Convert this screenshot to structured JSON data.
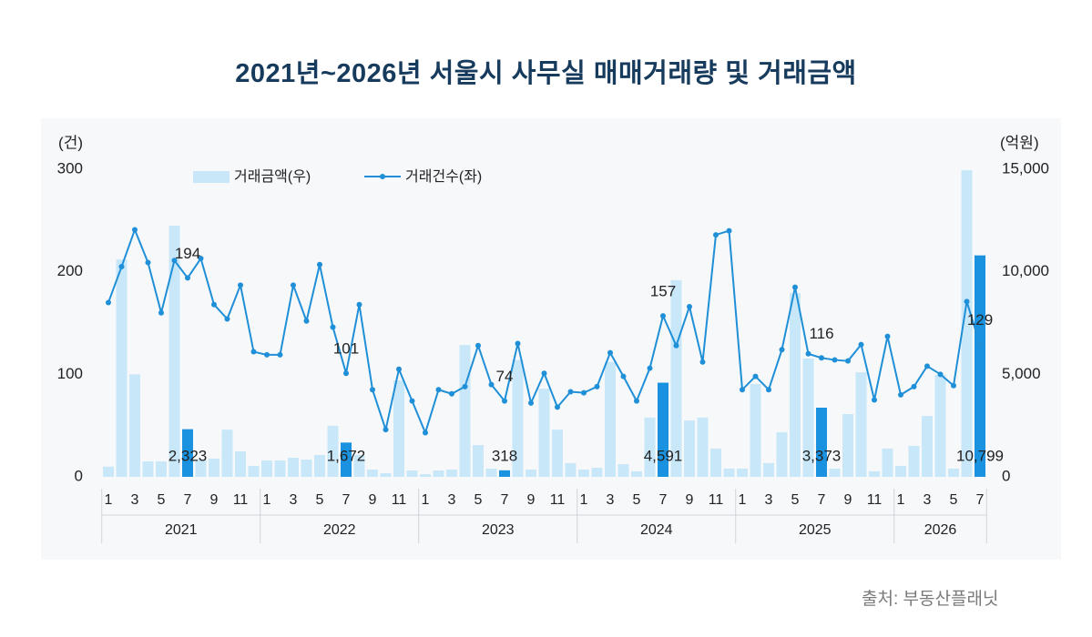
{
  "chart_data": {
    "type": "bar",
    "title": "2021년~2026년 서울시 사무실 매매거래량 및 거래금액",
    "y_left": {
      "label": "(건)",
      "ticks": [
        "0",
        "100",
        "200",
        "300"
      ],
      "range": [
        0,
        300
      ]
    },
    "y_right": {
      "label": "(억원)",
      "ticks": [
        "0",
        "5,000",
        "10,000",
        "15,000"
      ],
      "range": [
        0,
        15000
      ]
    },
    "years": [
      {
        "label": "2021",
        "tick_labels": [
          "1",
          "3",
          "5",
          "7",
          "9",
          "11"
        ]
      },
      {
        "label": "2022",
        "tick_labels": [
          "1",
          "3",
          "5",
          "7",
          "9",
          "11"
        ]
      },
      {
        "label": "2023",
        "tick_labels": [
          "1",
          "3",
          "5",
          "7",
          "9",
          "11"
        ]
      },
      {
        "label": "2024",
        "tick_labels": [
          "1",
          "3",
          "5",
          "7",
          "9",
          "11"
        ]
      },
      {
        "label": "2025",
        "tick_labels": [
          "1",
          "3",
          "5",
          "7",
          "9",
          "11"
        ]
      },
      {
        "label": "2026",
        "tick_labels": [
          "1",
          "3",
          "5",
          "7"
        ]
      }
    ],
    "x": [
      "2021-01",
      "2021-02",
      "2021-03",
      "2021-04",
      "2021-05",
      "2021-06",
      "2021-07",
      "2021-08",
      "2021-09",
      "2021-10",
      "2021-11",
      "2021-12",
      "2022-01",
      "2022-02",
      "2022-03",
      "2022-04",
      "2022-05",
      "2022-06",
      "2022-07",
      "2022-08",
      "2022-09",
      "2022-10",
      "2022-11",
      "2022-12",
      "2023-01",
      "2023-02",
      "2023-03",
      "2023-04",
      "2023-05",
      "2023-06",
      "2023-07",
      "2023-08",
      "2023-09",
      "2023-10",
      "2023-11",
      "2023-12",
      "2024-01",
      "2024-02",
      "2024-03",
      "2024-04",
      "2024-05",
      "2024-06",
      "2024-07",
      "2024-08",
      "2024-09",
      "2024-10",
      "2024-11",
      "2024-12",
      "2025-01",
      "2025-02",
      "2025-03",
      "2025-04",
      "2025-05",
      "2025-06",
      "2025-07",
      "2025-08",
      "2025-09",
      "2025-10",
      "2025-11",
      "2025-12",
      "2026-01",
      "2026-02",
      "2026-03",
      "2026-04",
      "2026-05",
      "2026-06",
      "2026-07"
    ],
    "series": [
      {
        "name": "거래금액(우)",
        "type": "bar",
        "axis": "right",
        "values": [
          500,
          10600,
          5000,
          750,
          750,
          12250,
          2323,
          850,
          890,
          2300,
          1240,
          530,
          800,
          800,
          930,
          840,
          1070,
          2490,
          1672,
          1070,
          350,
          180,
          4700,
          310,
          130,
          310,
          350,
          6430,
          1550,
          400,
          318,
          5700,
          350,
          4300,
          2300,
          670,
          350,
          440,
          5600,
          620,
          270,
          2890,
          4591,
          9590,
          2750,
          2890,
          1380,
          400,
          400,
          4530,
          670,
          2170,
          8960,
          5770,
          3373,
          400,
          3060,
          5100,
          270,
          1380,
          530,
          1510,
          2970,
          4970,
          400,
          14950,
          10799
        ],
        "data_labels": [
          {
            "x": "2021-07",
            "text": "2,323"
          },
          {
            "x": "2022-07",
            "text": "1,672"
          },
          {
            "x": "2023-07",
            "text": "318"
          },
          {
            "x": "2024-07",
            "text": "4,591"
          },
          {
            "x": "2025-07",
            "text": "3,373"
          },
          {
            "x": "2026-07",
            "text": "10,799"
          }
        ]
      },
      {
        "name": "거래건수(좌)",
        "type": "line",
        "axis": "left",
        "values": [
          170,
          205,
          241,
          209,
          160,
          211,
          194,
          213,
          168,
          154,
          187,
          122,
          119,
          119,
          187,
          152,
          207,
          146,
          101,
          168,
          85,
          46,
          105,
          74,
          43,
          85,
          81,
          88,
          128,
          90,
          74,
          130,
          72,
          101,
          68,
          83,
          82,
          88,
          121,
          98,
          74,
          106,
          157,
          128,
          166,
          112,
          236,
          240,
          85,
          98,
          85,
          124,
          185,
          120,
          116,
          114,
          113,
          129,
          75,
          137,
          80,
          88,
          108,
          100,
          89,
          171,
          129
        ],
        "data_labels": [
          {
            "x": "2021-07",
            "text": "194"
          },
          {
            "x": "2022-07",
            "text": "101"
          },
          {
            "x": "2023-07",
            "text": "74"
          },
          {
            "x": "2024-07",
            "text": "157"
          },
          {
            "x": "2025-07",
            "text": "116"
          },
          {
            "x": "2026-07",
            "text": "129"
          }
        ]
      }
    ],
    "legend": "top-left",
    "grid": false,
    "colors": {
      "background": "#f7f8fa",
      "bar": "#c8e7f8",
      "bar_highlight": "#1a92e0",
      "line": "#1f8fd7",
      "divider": "#cfd4da"
    }
  },
  "source": "출처: 부동산플래닛"
}
